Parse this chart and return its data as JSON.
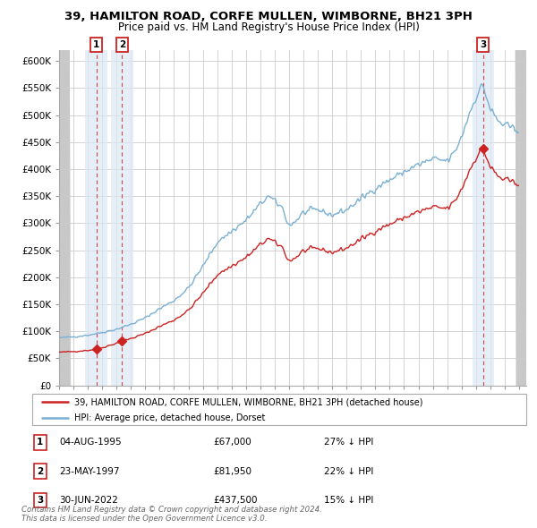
{
  "title": "39, HAMILTON ROAD, CORFE MULLEN, WIMBORNE, BH21 3PH",
  "subtitle": "Price paid vs. HM Land Registry's House Price Index (HPI)",
  "ylim": [
    0,
    620000
  ],
  "yticks": [
    0,
    50000,
    100000,
    150000,
    200000,
    250000,
    300000,
    350000,
    400000,
    450000,
    500000,
    550000,
    600000
  ],
  "ytick_labels": [
    "£0",
    "£50K",
    "£100K",
    "£150K",
    "£200K",
    "£250K",
    "£300K",
    "£350K",
    "£400K",
    "£450K",
    "£500K",
    "£550K",
    "£600K"
  ],
  "xlim_start": 1993.0,
  "xlim_end": 2025.5,
  "sale_dates": [
    1995.585,
    1997.388,
    2022.495
  ],
  "sale_prices": [
    67000,
    81950,
    437500
  ],
  "sale_labels": [
    "1",
    "2",
    "3"
  ],
  "hpi_color": "#7ab0d4",
  "price_color": "#cc2222",
  "dashed_color": "#cc3333",
  "shade_color": "#dce8f5",
  "hatch_color": "#d8d8d8",
  "legend_price_label": "39, HAMILTON ROAD, CORFE MULLEN, WIMBORNE, BH21 3PH (detached house)",
  "legend_hpi_label": "HPI: Average price, detached house, Dorset",
  "table_entries": [
    [
      "1",
      "04-AUG-1995",
      "£67,000",
      "27% ↓ HPI"
    ],
    [
      "2",
      "23-MAY-1997",
      "£81,950",
      "22% ↓ HPI"
    ],
    [
      "3",
      "30-JUN-2022",
      "£437,500",
      "15% ↓ HPI"
    ]
  ],
  "footer": "Contains HM Land Registry data © Crown copyright and database right 2024.\nThis data is licensed under the Open Government Licence v3.0.",
  "title_fontsize": 9.5,
  "subtitle_fontsize": 8.5,
  "axis_fontsize": 7.5,
  "hpi_linewidth": 1.0,
  "price_linewidth": 1.0
}
